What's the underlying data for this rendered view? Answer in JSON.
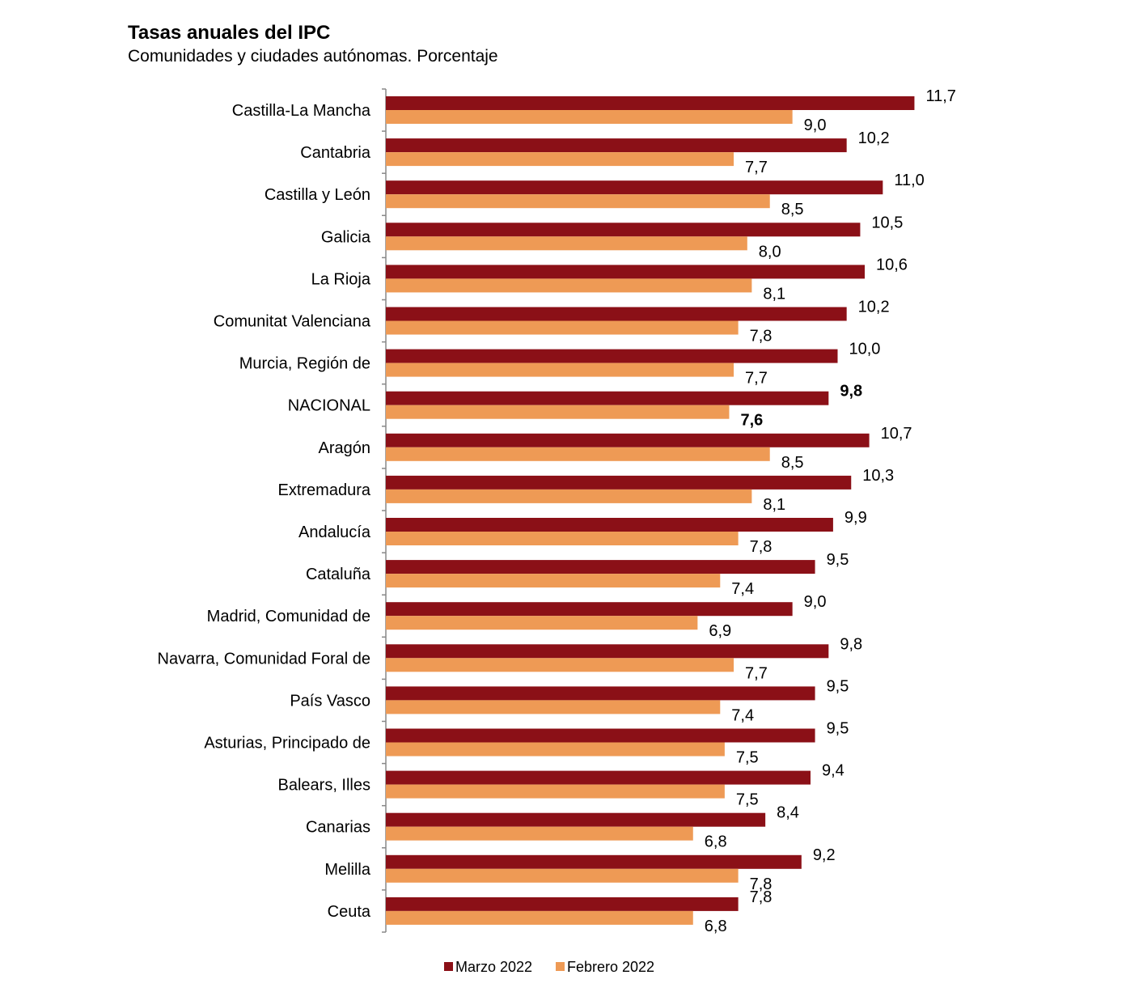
{
  "chart_data": {
    "type": "bar",
    "orientation": "horizontal",
    "title": "Tasas anuales del IPC",
    "subtitle": "Comunidades y ciudades autónomas. Porcentaje",
    "categories": [
      "Castilla-La Mancha",
      "Cantabria",
      "Castilla y León",
      "Galicia",
      "La Rioja",
      "Comunitat Valenciana",
      "Murcia, Región de",
      "NACIONAL",
      "Aragón",
      "Extremadura",
      "Andalucía",
      "Cataluña",
      "Madrid, Comunidad de",
      "Navarra, Comunidad Foral de",
      "País Vasco",
      "Asturias, Principado de",
      "Balears, Illes",
      "Canarias",
      "Melilla",
      "Ceuta"
    ],
    "series": [
      {
        "name": "Marzo 2022",
        "color": "#8B1017",
        "values": [
          11.7,
          10.2,
          11.0,
          10.5,
          10.6,
          10.2,
          10.0,
          9.8,
          10.7,
          10.3,
          9.9,
          9.5,
          9.0,
          9.8,
          9.5,
          9.5,
          9.4,
          8.4,
          9.2,
          7.8
        ],
        "labels": [
          "11,7",
          "10,2",
          "11,0",
          "10,5",
          "10,6",
          "10,2",
          "10,0",
          "9,8",
          "10,7",
          "10,3",
          "9,9",
          "9,5",
          "9,0",
          "9,8",
          "9,5",
          "9,5",
          "9,4",
          "8,4",
          "9,2",
          "7,8"
        ]
      },
      {
        "name": "Febrero 2022",
        "color": "#EE9A55",
        "values": [
          9.0,
          7.7,
          8.5,
          8.0,
          8.1,
          7.8,
          7.7,
          7.6,
          8.5,
          8.1,
          7.8,
          7.4,
          6.9,
          7.7,
          7.4,
          7.5,
          7.5,
          6.8,
          7.8,
          6.8
        ],
        "labels": [
          "9,0",
          "7,7",
          "8,5",
          "8,0",
          "8,1",
          "7,8",
          "7,7",
          "7,6",
          "8,5",
          "8,1",
          "7,8",
          "7,4",
          "6,9",
          "7,7",
          "7,4",
          "7,5",
          "7,5",
          "6,8",
          "7,8",
          "6,8"
        ]
      }
    ],
    "highlight_category": "NACIONAL",
    "xlim": [
      0,
      12
    ],
    "grid": false,
    "legend_position": "bottom"
  }
}
